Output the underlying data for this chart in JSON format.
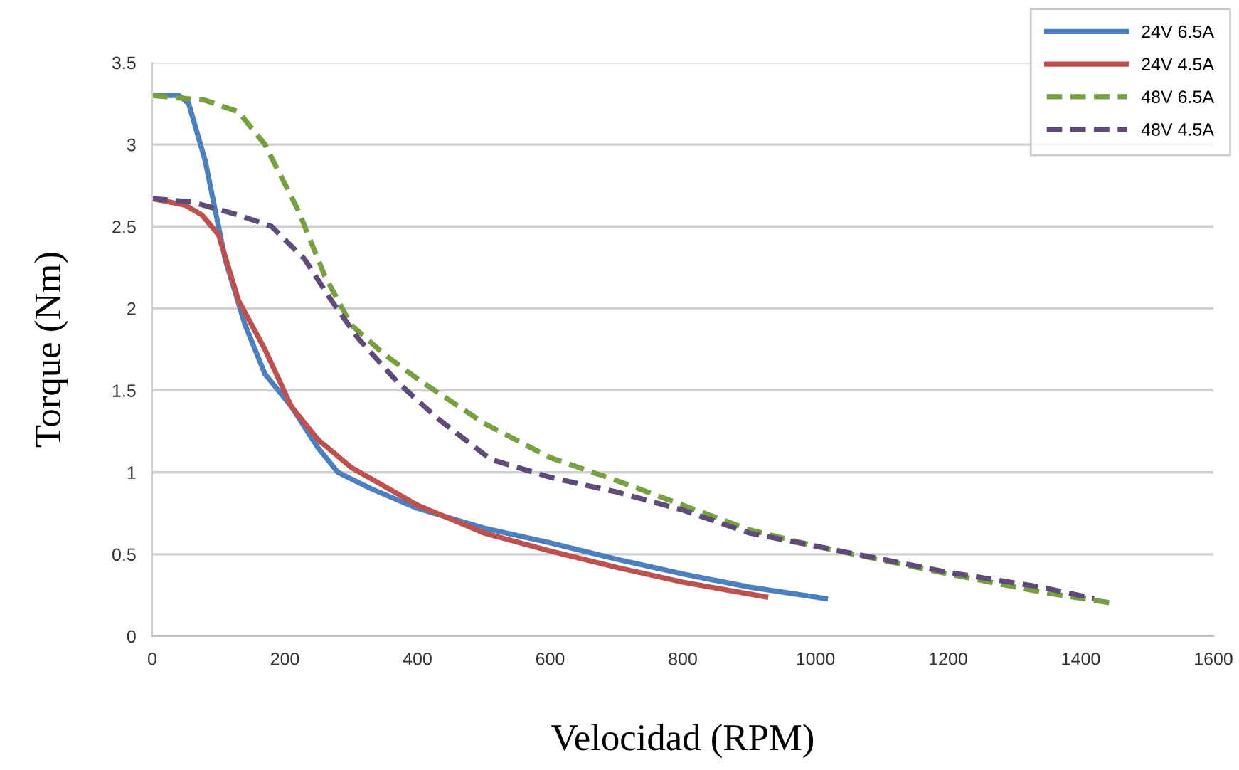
{
  "chart_data": {
    "type": "line",
    "xlabel": "Velocidad (RPM)",
    "ylabel": "Torque (Nm)",
    "xlim": [
      0,
      1600
    ],
    "xticks": [
      0,
      200,
      400,
      600,
      800,
      1000,
      1200,
      1400,
      1600
    ],
    "ylim": [
      0,
      3.5
    ],
    "yticks": [
      0,
      0.5,
      1,
      1.5,
      2,
      2.5,
      3,
      3.5
    ],
    "grid": "y",
    "legend": "top right",
    "marker": "none",
    "series": [
      {
        "name": "24V 6.5A",
        "color": "#4a7fc1",
        "line_style": "solid",
        "x": [
          0,
          40,
          55,
          80,
          110,
          140,
          170,
          210,
          250,
          280,
          330,
          400,
          500,
          600,
          700,
          800,
          900,
          1015
        ],
        "values": [
          3.3,
          3.3,
          3.25,
          2.9,
          2.3,
          1.9,
          1.6,
          1.4,
          1.15,
          1.0,
          0.9,
          0.78,
          0.66,
          0.57,
          0.47,
          0.38,
          0.3,
          0.23
        ]
      },
      {
        "name": "24V 4.5A",
        "color": "#c0504d",
        "line_style": "solid",
        "x": [
          0,
          50,
          75,
          100,
          130,
          170,
          210,
          250,
          300,
          400,
          500,
          600,
          700,
          800,
          925
        ],
        "values": [
          2.67,
          2.63,
          2.57,
          2.45,
          2.05,
          1.75,
          1.4,
          1.2,
          1.03,
          0.8,
          0.63,
          0.52,
          0.42,
          0.33,
          0.24
        ]
      },
      {
        "name": "48V 6.5A",
        "color": "#77a03f",
        "line_style": "dashed",
        "x": [
          0,
          80,
          130,
          170,
          220,
          260,
          300,
          350,
          400,
          500,
          600,
          700,
          800,
          900,
          1000,
          1200,
          1340,
          1450
        ],
        "values": [
          3.3,
          3.27,
          3.2,
          3.0,
          2.6,
          2.2,
          1.9,
          1.72,
          1.57,
          1.3,
          1.09,
          0.95,
          0.8,
          0.65,
          0.55,
          0.38,
          0.27,
          0.2
        ]
      },
      {
        "name": "48V 4.5A",
        "color": "#604a7b",
        "line_style": "dashed",
        "x": [
          0,
          60,
          130,
          180,
          230,
          270,
          310,
          370,
          430,
          510,
          600,
          700,
          800,
          900,
          1000,
          1200,
          1340,
          1420
        ],
        "values": [
          2.67,
          2.65,
          2.57,
          2.5,
          2.3,
          2.05,
          1.82,
          1.55,
          1.33,
          1.08,
          0.97,
          0.88,
          0.77,
          0.63,
          0.55,
          0.39,
          0.3,
          0.23
        ]
      }
    ]
  }
}
